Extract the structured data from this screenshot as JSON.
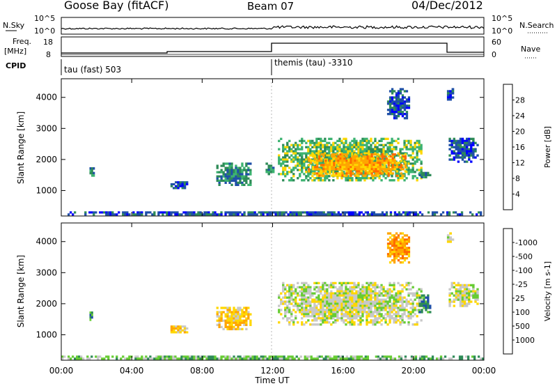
{
  "header": {
    "station": "Goose Bay (fitACF)",
    "beam": "Beam 07",
    "date": "04/Dec/2012"
  },
  "noise_panel": {
    "left_label": "N.Sky",
    "right_label": "N.Search",
    "left_ticks": [
      "10^5",
      "10^0"
    ],
    "right_ticks": [
      "10^5",
      "10^0"
    ]
  },
  "freq_panel": {
    "left_label_line1": "Freq.",
    "left_label_line2": "[MHz]",
    "right_label": "Nave",
    "left_ticks": [
      "18",
      "8"
    ],
    "right_ticks": [
      "60",
      "0"
    ]
  },
  "cpid": {
    "label": "CPID",
    "segments": [
      {
        "name": "tau (fast) 503",
        "start_hour": 0
      },
      {
        "name": "themis (tau) -3310",
        "start_hour": 12
      }
    ]
  },
  "x_axis": {
    "title": "Time UT",
    "tick_labels": [
      "00:00",
      "04:00",
      "08:00",
      "12:00",
      "16:00",
      "20:00",
      "00:00"
    ],
    "range_hours": [
      0,
      24
    ]
  },
  "chart_data": [
    {
      "type": "heatmap",
      "ylabel": "Slant Range [km]",
      "y_ticks": [
        1000,
        2000,
        3000,
        4000
      ],
      "ylim": [
        180,
        4600
      ],
      "xlim": [
        0,
        24
      ],
      "colorbar": {
        "label": "Power [dB]",
        "tick_labels": [
          "4",
          "8",
          "12",
          "16",
          "20",
          "24",
          "28"
        ],
        "levels": 8,
        "colors": [
          "#0000ff",
          "#1f4fa8",
          "#2e8b57",
          "#3cb371",
          "#ffd700",
          "#ffa500",
          "#ff6a00",
          "#ff0000"
        ]
      },
      "regions": [
        {
          "t0": 0.0,
          "t1": 24.0,
          "r0": 200,
          "r1": 330,
          "level": 1
        },
        {
          "t0": 1.6,
          "t1": 1.9,
          "r0": 1450,
          "r1": 1750,
          "level": 2
        },
        {
          "t0": 6.2,
          "t1": 7.2,
          "r0": 1050,
          "r1": 1300,
          "level": 1
        },
        {
          "t0": 8.8,
          "t1": 10.8,
          "r0": 1150,
          "r1": 1900,
          "level": 2
        },
        {
          "t0": 11.6,
          "t1": 12.1,
          "r0": 1500,
          "r1": 1900,
          "level": 2
        },
        {
          "t0": 12.3,
          "t1": 20.5,
          "r0": 1300,
          "r1": 2700,
          "level": 3
        },
        {
          "t0": 14.0,
          "t1": 19.6,
          "r0": 1450,
          "r1": 2200,
          "level": 5
        },
        {
          "t0": 18.5,
          "t1": 19.8,
          "r0": 3300,
          "r1": 4300,
          "level": 1
        },
        {
          "t0": 20.3,
          "t1": 21.0,
          "r0": 1400,
          "r1": 1600,
          "level": 2
        },
        {
          "t0": 22.0,
          "t1": 23.7,
          "r0": 1900,
          "r1": 2700,
          "level": 1
        },
        {
          "t0": 21.9,
          "t1": 22.3,
          "r0": 3900,
          "r1": 4300,
          "level": 1
        }
      ]
    },
    {
      "type": "heatmap",
      "ylabel": "Slant Range [km]",
      "y_ticks": [
        1000,
        2000,
        3000,
        4000
      ],
      "ylim": [
        180,
        4600
      ],
      "xlim": [
        0,
        24
      ],
      "colorbar": {
        "label": "Velocity [m s-1]",
        "tick_labels": [
          "1000",
          "500",
          "100",
          "25",
          "-25",
          "-100",
          "-500",
          "-1000"
        ],
        "levels": 9,
        "colors": [
          "#0000ff",
          "#1f4fa8",
          "#2e8b57",
          "#66cc33",
          "#c8c8c8",
          "#ffd700",
          "#ffa500",
          "#ff6a00",
          "#ff0000"
        ]
      },
      "regions": [
        {
          "t0": 0.0,
          "t1": 24.0,
          "r0": 200,
          "r1": 330,
          "level": 3
        },
        {
          "t0": 1.6,
          "t1": 1.9,
          "r0": 1450,
          "r1": 1750,
          "level": 2
        },
        {
          "t0": 6.2,
          "t1": 7.2,
          "r0": 1050,
          "r1": 1300,
          "level": 5
        },
        {
          "t0": 8.8,
          "t1": 10.8,
          "r0": 1150,
          "r1": 1900,
          "level": 5
        },
        {
          "t0": 12.3,
          "t1": 20.5,
          "r0": 1300,
          "r1": 2700,
          "level": 4
        },
        {
          "t0": 18.5,
          "t1": 19.8,
          "r0": 3300,
          "r1": 4300,
          "level": 6
        },
        {
          "t0": 20.3,
          "t1": 21.0,
          "r0": 1700,
          "r1": 2300,
          "level": 2
        },
        {
          "t0": 22.0,
          "t1": 23.7,
          "r0": 1900,
          "r1": 2700,
          "level": 4
        },
        {
          "t0": 21.9,
          "t1": 22.3,
          "r0": 3900,
          "r1": 4300,
          "level": 4
        }
      ]
    }
  ]
}
